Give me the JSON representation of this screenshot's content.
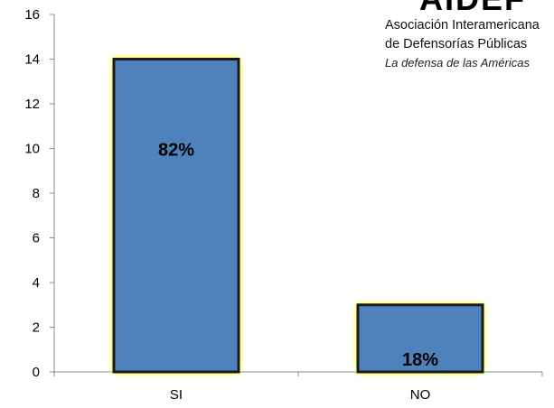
{
  "chart_data": {
    "type": "bar",
    "categories": [
      "SI",
      "NO"
    ],
    "values": [
      14,
      3
    ],
    "data_labels": [
      "82%",
      "18%"
    ],
    "ylim": [
      0,
      16
    ],
    "yticks": [
      0,
      2,
      4,
      6,
      8,
      10,
      12,
      14,
      16
    ],
    "grid": false,
    "colors": {
      "bar_fill": "#4F81BD",
      "bar_border": "#1A1A1A",
      "bar_glow": "#FFFF00",
      "axis": "#888888"
    }
  },
  "logo": {
    "mark": "AIDEF",
    "line1": "Asociación Interamericana",
    "line2": "de Defensorías Públicas",
    "line3": "La defensa de las Américas"
  }
}
